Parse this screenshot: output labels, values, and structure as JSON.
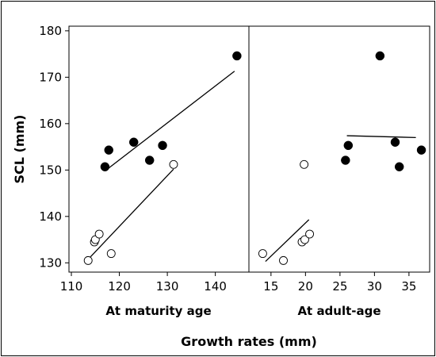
{
  "chart_data": {
    "type": "scatter",
    "ylabel": "SCL (mm)",
    "xlabel": "Growth rates (mm)",
    "ylim": [
      128,
      181
    ],
    "yticks": [
      130,
      140,
      150,
      160,
      170,
      180
    ],
    "grid": false,
    "legend": "none",
    "colors": {
      "filled": "#000000",
      "open": "#ffffff",
      "line": "#000000"
    },
    "panels": [
      {
        "title": "At maturity age",
        "xlim": [
          109.5,
          147
        ],
        "xticks": [
          110,
          120,
          130,
          140
        ],
        "series": [
          {
            "marker": "filled",
            "points": [
              [
                117,
                150.7
              ],
              [
                117.8,
                154.3
              ],
              [
                123,
                156
              ],
              [
                126.3,
                152.1
              ],
              [
                129,
                155.3
              ],
              [
                144.5,
                174.6
              ]
            ],
            "fit": [
              [
                117,
                149.8
              ],
              [
                144,
                171.3
              ]
            ]
          },
          {
            "marker": "open",
            "points": [
              [
                113.5,
                130.5
              ],
              [
                114.8,
                134.5
              ],
              [
                115,
                135
              ],
              [
                115.8,
                136.2
              ],
              [
                118.3,
                132
              ],
              [
                131.3,
                151.2
              ]
            ],
            "fit": [
              [
                114,
                131.3
              ],
              [
                131.3,
                150.2
              ]
            ]
          }
        ]
      },
      {
        "title": "At adult-age",
        "xlim": [
          11.8,
          38
        ],
        "xticks": [
          15,
          20,
          25,
          30,
          35
        ],
        "series": [
          {
            "marker": "filled",
            "points": [
              [
                25.8,
                152.1
              ],
              [
                26.2,
                155.3
              ],
              [
                30.8,
                174.6
              ],
              [
                33,
                156
              ],
              [
                33.6,
                150.7
              ],
              [
                36.8,
                154.3
              ]
            ],
            "fit": [
              [
                26,
                157.4
              ],
              [
                36,
                157
              ]
            ]
          },
          {
            "marker": "open",
            "points": [
              [
                13.8,
                132
              ],
              [
                16.8,
                130.5
              ],
              [
                19.5,
                134.5
              ],
              [
                19.9,
                135
              ],
              [
                19.8,
                151.2
              ],
              [
                20.6,
                136.2
              ]
            ],
            "fit": [
              [
                14.2,
                130.3
              ],
              [
                20.5,
                139.3
              ]
            ]
          }
        ]
      }
    ]
  }
}
